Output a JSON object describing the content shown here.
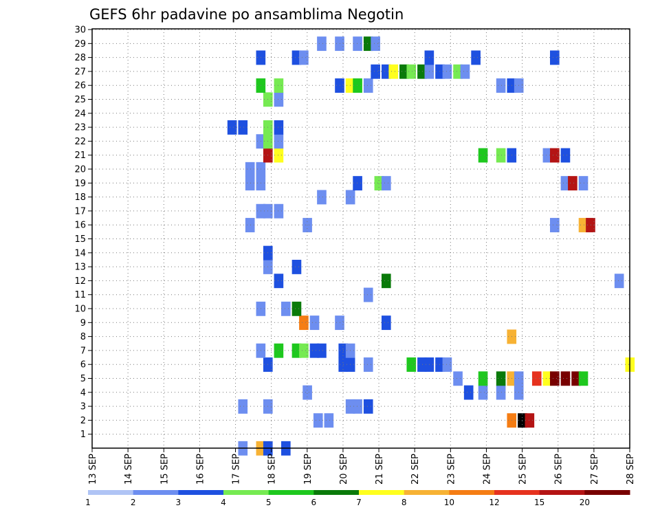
{
  "chart_data": {
    "type": "heatmap",
    "title": "GEFS 6hr padavine po ansamblima Negotin",
    "x_tick_labels": [
      "13 SEP",
      "14 SEP",
      "15 SEP",
      "16 SEP",
      "17 SEP",
      "18 SEP",
      "19 SEP",
      "20 SEP",
      "21 SEP",
      "22 SEP",
      "23 SEP",
      "24 SEP",
      "25 SEP",
      "26 SEP",
      "27 SEP",
      "28 SEP"
    ],
    "y_tick_labels": [
      "1",
      "2",
      "3",
      "4",
      "5",
      "6",
      "7",
      "8",
      "9",
      "10",
      "11",
      "12",
      "13",
      "14",
      "15",
      "16",
      "17",
      "18",
      "19",
      "20",
      "21",
      "22",
      "23",
      "24",
      "25",
      "26",
      "27",
      "28",
      "29",
      "30"
    ],
    "x_range_days": [
      13,
      28
    ],
    "y_range": [
      0,
      30
    ],
    "grid": true,
    "colorbar": {
      "labels": [
        "1",
        "2",
        "3",
        "4",
        "5",
        "6",
        "7",
        "8",
        "10",
        "12",
        "15",
        "20"
      ],
      "colors": [
        "#b0c4f5",
        "#6d8ef0",
        "#1e50e0",
        "#76ea52",
        "#1ec81e",
        "#0a7a0a",
        "#ffff1e",
        "#f7b234",
        "#f57d14",
        "#e6321e",
        "#b41414",
        "#780000"
      ]
    },
    "cells": [
      [
        18.4,
        0,
        2
      ],
      [
        17.2,
        0,
        1
      ],
      [
        17.7,
        0,
        7
      ],
      [
        17.9,
        0,
        2
      ],
      [
        19.3,
        2,
        1
      ],
      [
        19.6,
        2,
        1
      ],
      [
        25.0,
        2,
        12
      ],
      [
        25.2,
        2,
        10
      ],
      [
        24.7,
        2,
        8
      ],
      [
        17.2,
        3,
        1
      ],
      [
        17.9,
        3,
        1
      ],
      [
        20.2,
        3,
        1
      ],
      [
        20.4,
        3,
        1
      ],
      [
        20.7,
        3,
        2
      ],
      [
        19.0,
        4,
        1
      ],
      [
        23.5,
        4,
        2
      ],
      [
        23.9,
        4,
        1
      ],
      [
        24.4,
        4,
        1
      ],
      [
        24.9,
        4,
        1
      ],
      [
        23.2,
        5,
        1
      ],
      [
        23.9,
        5,
        4
      ],
      [
        24.4,
        5,
        5
      ],
      [
        24.7,
        5,
        7
      ],
      [
        24.9,
        5,
        1
      ],
      [
        25.4,
        5,
        9
      ],
      [
        25.7,
        5,
        6
      ],
      [
        25.9,
        5,
        11
      ],
      [
        26.2,
        5,
        11
      ],
      [
        26.5,
        5,
        11
      ],
      [
        26.7,
        5,
        4
      ],
      [
        17.9,
        6,
        2
      ],
      [
        20.0,
        6,
        2
      ],
      [
        20.2,
        6,
        2
      ],
      [
        20.7,
        6,
        1
      ],
      [
        21.9,
        6,
        4
      ],
      [
        22.2,
        6,
        2
      ],
      [
        22.4,
        6,
        2
      ],
      [
        22.7,
        6,
        2
      ],
      [
        22.9,
        6,
        1
      ],
      [
        28.0,
        6,
        6
      ],
      [
        17.7,
        7,
        1
      ],
      [
        18.2,
        7,
        4
      ],
      [
        18.7,
        7,
        4
      ],
      [
        18.9,
        7,
        3
      ],
      [
        19.2,
        7,
        2
      ],
      [
        19.4,
        7,
        2
      ],
      [
        20.0,
        7,
        2
      ],
      [
        20.2,
        7,
        1
      ],
      [
        24.7,
        8,
        7
      ],
      [
        18.9,
        9,
        8
      ],
      [
        19.2,
        9,
        1
      ],
      [
        19.9,
        9,
        1
      ],
      [
        21.2,
        9,
        2
      ],
      [
        17.7,
        10,
        1
      ],
      [
        18.4,
        10,
        1
      ],
      [
        18.7,
        10,
        5
      ],
      [
        20.7,
        11,
        1
      ],
      [
        18.2,
        12,
        2
      ],
      [
        21.2,
        12,
        5
      ],
      [
        27.7,
        12,
        1
      ],
      [
        18.7,
        13,
        2
      ],
      [
        17.9,
        13,
        1
      ],
      [
        17.9,
        14,
        2
      ],
      [
        17.4,
        16,
        1
      ],
      [
        19.0,
        16,
        1
      ],
      [
        25.9,
        16,
        1
      ],
      [
        26.7,
        16,
        7
      ],
      [
        26.9,
        16,
        10
      ],
      [
        17.7,
        17,
        1
      ],
      [
        17.9,
        17,
        1
      ],
      [
        18.2,
        17,
        1
      ],
      [
        19.4,
        18,
        1
      ],
      [
        20.2,
        18,
        1
      ],
      [
        17.4,
        19,
        1
      ],
      [
        17.7,
        19,
        1
      ],
      [
        20.4,
        19,
        2
      ],
      [
        21.0,
        19,
        3
      ],
      [
        21.2,
        19,
        1
      ],
      [
        26.2,
        19,
        1
      ],
      [
        26.4,
        19,
        10
      ],
      [
        26.7,
        19,
        1
      ],
      [
        17.4,
        20,
        1
      ],
      [
        17.7,
        20,
        1
      ],
      [
        17.9,
        21,
        10
      ],
      [
        18.2,
        21,
        6
      ],
      [
        23.9,
        21,
        4
      ],
      [
        24.4,
        21,
        3
      ],
      [
        24.7,
        21,
        2
      ],
      [
        25.7,
        21,
        1
      ],
      [
        25.9,
        21,
        10
      ],
      [
        26.2,
        21,
        2
      ],
      [
        17.7,
        22,
        1
      ],
      [
        17.9,
        22,
        3
      ],
      [
        18.2,
        22,
        1
      ],
      [
        16.9,
        23,
        2
      ],
      [
        17.2,
        23,
        2
      ],
      [
        17.9,
        23,
        3
      ],
      [
        18.2,
        23,
        2
      ],
      [
        17.9,
        25,
        3
      ],
      [
        18.2,
        25,
        1
      ],
      [
        17.7,
        26,
        4
      ],
      [
        18.2,
        26,
        3
      ],
      [
        19.9,
        26,
        2
      ],
      [
        20.2,
        26,
        6
      ],
      [
        20.4,
        26,
        4
      ],
      [
        20.7,
        26,
        1
      ],
      [
        24.4,
        26,
        1
      ],
      [
        24.7,
        26,
        2
      ],
      [
        24.9,
        26,
        1
      ],
      [
        20.9,
        27,
        2
      ],
      [
        21.2,
        27,
        2
      ],
      [
        21.4,
        27,
        6
      ],
      [
        21.7,
        27,
        5
      ],
      [
        21.9,
        27,
        3
      ],
      [
        22.2,
        27,
        5
      ],
      [
        22.4,
        27,
        1
      ],
      [
        22.7,
        27,
        2
      ],
      [
        22.9,
        27,
        1
      ],
      [
        23.2,
        27,
        3
      ],
      [
        23.4,
        27,
        1
      ],
      [
        17.7,
        28,
        2
      ],
      [
        18.7,
        28,
        2
      ],
      [
        18.9,
        28,
        1
      ],
      [
        22.4,
        28,
        2
      ],
      [
        23.7,
        28,
        2
      ],
      [
        25.9,
        28,
        2
      ],
      [
        19.4,
        29,
        1
      ],
      [
        19.9,
        29,
        1
      ],
      [
        20.4,
        29,
        1
      ],
      [
        20.7,
        29,
        5
      ],
      [
        20.9,
        29,
        1
      ]
    ]
  }
}
